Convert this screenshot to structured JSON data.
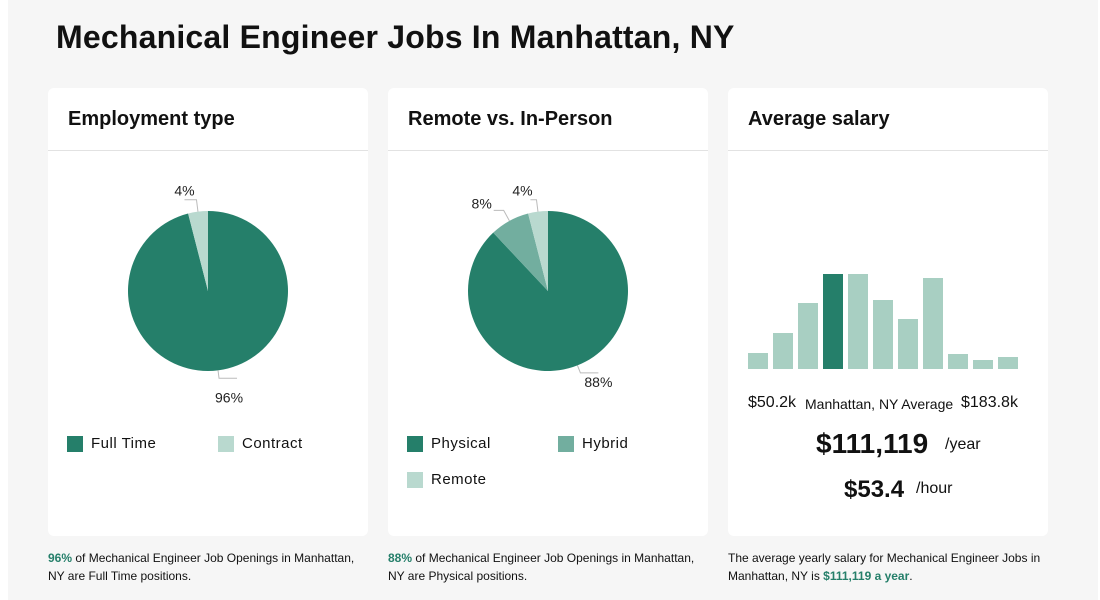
{
  "page_title": "Mechanical Engineer Jobs In Manhattan, NY",
  "colors": {
    "primary": "#257f6a",
    "secondary": "#72ae9f",
    "tertiary": "#b9d9cf",
    "bar_light": "#a8cfc2"
  },
  "employment": {
    "title": "Employment type",
    "legend": [
      "Full Time",
      "Contract"
    ],
    "caption_pct": "96%",
    "caption_text": " of Mechanical Engineer Job Openings in Manhattan, NY are Full Time positions."
  },
  "remote": {
    "title": "Remote vs. In-Person",
    "legend": [
      "Physical",
      "Hybrid",
      "Remote"
    ],
    "caption_pct": "88%",
    "caption_text": " of Mechanical Engineer Job Openings in Manhattan, NY are Physical positions."
  },
  "salary": {
    "title": "Average salary",
    "min_label": "$50.2k",
    "mid_label": "Manhattan, NY Average",
    "max_label": "$183.8k",
    "yearly": "$111,119",
    "yearly_unit": "/year",
    "hourly": "$53.4",
    "hourly_unit": "/hour",
    "caption_text": "The average yearly salary for Mechanical Engineer Jobs in Manhattan, NY is ",
    "caption_value": "$111,119 a year",
    "caption_end": "."
  },
  "chart_data": [
    {
      "type": "pie",
      "title": "Employment type",
      "slices": [
        {
          "name": "Full Time",
          "value": 96,
          "label": "96%",
          "color": "#257f6a"
        },
        {
          "name": "Contract",
          "value": 4,
          "label": "4%",
          "color": "#b9d9cf"
        }
      ]
    },
    {
      "type": "pie",
      "title": "Remote vs. In-Person",
      "slices": [
        {
          "name": "Physical",
          "value": 88,
          "label": "88%",
          "color": "#257f6a"
        },
        {
          "name": "Hybrid",
          "value": 8,
          "label": "8%",
          "color": "#72ae9f"
        },
        {
          "name": "Remote",
          "value": 4,
          "label": "4%",
          "color": "#b9d9cf"
        }
      ]
    },
    {
      "type": "bar",
      "title": "Average salary",
      "values": [
        16,
        36,
        66,
        100,
        98,
        69,
        50,
        91,
        15,
        9,
        12
      ],
      "highlight_index": 3
    }
  ]
}
